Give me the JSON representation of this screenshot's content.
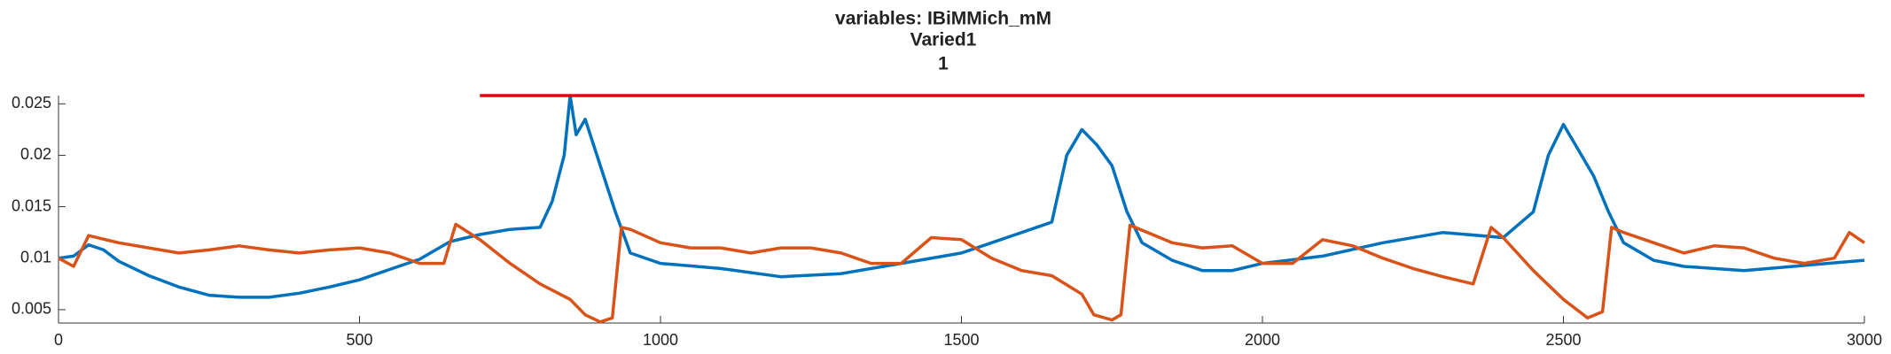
{
  "chart_data": {
    "type": "line",
    "title": "variables: IBiMMich_mM",
    "subtitle": "Varied1",
    "subtitle2": "1",
    "xlim": [
      0,
      3000
    ],
    "xticks": [
      0,
      500,
      1000,
      1500,
      2000,
      2500,
      3000
    ],
    "ylim": [
      0.0037,
      0.0258
    ],
    "yticks": [
      0.005,
      0.01,
      0.015,
      0.02,
      0.025
    ],
    "series": [
      {
        "color": "#0072bd",
        "x": [
          0,
          25,
          50,
          75,
          100,
          150,
          200,
          250,
          300,
          350,
          400,
          450,
          500,
          550,
          600,
          650,
          700,
          750,
          800,
          820,
          840,
          850,
          860,
          875,
          900,
          925,
          950,
          1000,
          1100,
          1200,
          1300,
          1400,
          1500,
          1550,
          1600,
          1650,
          1675,
          1700,
          1725,
          1750,
          1775,
          1800,
          1850,
          1900,
          1950,
          2000,
          2100,
          2200,
          2300,
          2400,
          2450,
          2475,
          2500,
          2525,
          2550,
          2575,
          2600,
          2650,
          2700,
          2800,
          2900,
          3000
        ],
        "values": [
          0.01,
          0.0102,
          0.0113,
          0.0108,
          0.0097,
          0.0083,
          0.0072,
          0.0064,
          0.0062,
          0.0062,
          0.0066,
          0.0072,
          0.0079,
          0.0089,
          0.0099,
          0.0116,
          0.0123,
          0.0128,
          0.013,
          0.0155,
          0.02,
          0.0258,
          0.022,
          0.0235,
          0.019,
          0.0145,
          0.0105,
          0.0095,
          0.009,
          0.0082,
          0.0085,
          0.0095,
          0.0105,
          0.0115,
          0.0125,
          0.0135,
          0.02,
          0.0225,
          0.021,
          0.019,
          0.0145,
          0.0115,
          0.0098,
          0.0088,
          0.0088,
          0.0095,
          0.0102,
          0.0115,
          0.0125,
          0.012,
          0.0145,
          0.02,
          0.023,
          0.0205,
          0.018,
          0.0145,
          0.0115,
          0.0098,
          0.0092,
          0.0088,
          0.0093,
          0.0098
        ]
      },
      {
        "color": "#d95319",
        "x": [
          0,
          25,
          50,
          100,
          150,
          200,
          250,
          300,
          350,
          400,
          450,
          500,
          550,
          600,
          640,
          660,
          700,
          750,
          800,
          850,
          875,
          900,
          920,
          935,
          950,
          1000,
          1050,
          1100,
          1150,
          1200,
          1250,
          1300,
          1350,
          1400,
          1450,
          1500,
          1550,
          1600,
          1650,
          1700,
          1720,
          1750,
          1765,
          1780,
          1850,
          1900,
          1950,
          2000,
          2050,
          2100,
          2150,
          2200,
          2250,
          2300,
          2350,
          2380,
          2400,
          2450,
          2500,
          2540,
          2565,
          2580,
          2600,
          2650,
          2700,
          2750,
          2800,
          2850,
          2900,
          2950,
          2975,
          3000
        ],
        "values": [
          0.01,
          0.0092,
          0.0122,
          0.0115,
          0.011,
          0.0105,
          0.0108,
          0.0112,
          0.0108,
          0.0105,
          0.0108,
          0.011,
          0.0105,
          0.0095,
          0.0095,
          0.0133,
          0.0118,
          0.0095,
          0.0075,
          0.006,
          0.0045,
          0.0038,
          0.0042,
          0.013,
          0.0128,
          0.0115,
          0.011,
          0.011,
          0.0105,
          0.011,
          0.011,
          0.0105,
          0.0095,
          0.0095,
          0.012,
          0.0118,
          0.01,
          0.0088,
          0.0083,
          0.0065,
          0.0045,
          0.004,
          0.0045,
          0.0132,
          0.0115,
          0.011,
          0.0112,
          0.0095,
          0.0095,
          0.0118,
          0.0112,
          0.01,
          0.009,
          0.0082,
          0.0075,
          0.013,
          0.012,
          0.0088,
          0.006,
          0.0042,
          0.0048,
          0.013,
          0.0125,
          0.0115,
          0.0105,
          0.0112,
          0.011,
          0.01,
          0.0095,
          0.01,
          0.0125,
          0.0115
        ]
      },
      {
        "color": "#e3000f",
        "x": [
          700,
          3000
        ],
        "values": [
          0.0258,
          0.0258
        ]
      }
    ]
  }
}
